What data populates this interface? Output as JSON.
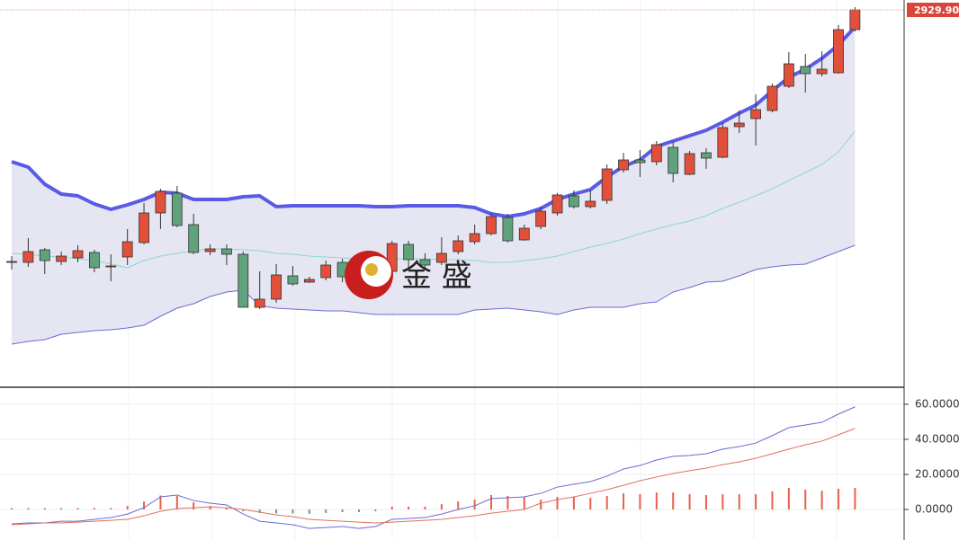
{
  "chart_data": [
    {
      "type": "candlestick",
      "watermark": "金 盛",
      "last_price": {
        "value": 2929.9,
        "label": "2929.90"
      },
      "ylim": [
        2510.9,
        2940.9
      ],
      "up_color": "#e0503a",
      "down_color": "#5fa27c",
      "open": [
        2648.9,
        2648.9,
        2662.9,
        2649.9,
        2653.9,
        2659.9,
        2643.9,
        2654.9,
        2670.9,
        2703.9,
        2725.9,
        2690.9,
        2660.9,
        2663.9,
        2657.9,
        2598.9,
        2607.9,
        2633.9,
        2626.9,
        2631.9,
        2648.9,
        2640.9,
        2645.9,
        2638.9,
        2668.9,
        2651.9,
        2648.9,
        2660.9,
        2671.9,
        2680.9,
        2698.9,
        2673.9,
        2688.9,
        2703.9,
        2722.9,
        2710.9,
        2717.9,
        2751.9,
        2762.9,
        2760.9,
        2776.9,
        2746.9,
        2770.9,
        2765.9,
        2799.9,
        2808.9,
        2817.9,
        2844.9,
        2866.9,
        2858.9,
        2859.9,
        2907.9
      ],
      "high": [
        2655.9,
        2675.9,
        2664.9,
        2660.9,
        2667.9,
        2662.9,
        2657.9,
        2685.9,
        2714.9,
        2730.9,
        2733.9,
        2702.9,
        2668.9,
        2668.9,
        2660.9,
        2638.9,
        2646.9,
        2644.9,
        2632.9,
        2650.9,
        2652.9,
        2654.9,
        2660.9,
        2672.9,
        2672.9,
        2658.9,
        2676.9,
        2678.9,
        2690.9,
        2703.9,
        2702.9,
        2690.9,
        2710.9,
        2725.9,
        2728.9,
        2728.9,
        2757.9,
        2770.9,
        2773.9,
        2783.9,
        2782.9,
        2772.9,
        2775.9,
        2803.9,
        2817.9,
        2835.9,
        2847.9,
        2882.9,
        2880.9,
        2883.9,
        2912.9,
        2932.9
      ],
      "low": [
        2640.9,
        2643.9,
        2635.9,
        2645.9,
        2648.9,
        2637.9,
        2627.9,
        2645.9,
        2668.9,
        2685.9,
        2687.9,
        2657.9,
        2656.9,
        2645.9,
        2598.9,
        2596.9,
        2603.9,
        2622.9,
        2625.9,
        2628.9,
        2626.9,
        2636.9,
        2642.9,
        2635.9,
        2640.9,
        2640.9,
        2645.9,
        2657.9,
        2668.9,
        2678.9,
        2670.9,
        2672.9,
        2685.9,
        2700.9,
        2708.9,
        2708.9,
        2713.9,
        2748.9,
        2743.9,
        2756.9,
        2737.9,
        2745.9,
        2752.9,
        2764.9,
        2792.9,
        2778.9,
        2815.9,
        2842.9,
        2837.9,
        2855.9,
        2858.9,
        2905.9
      ],
      "close": [
        2649.9,
        2660.9,
        2650.9,
        2655.9,
        2661.9,
        2642.9,
        2644.9,
        2671.9,
        2703.9,
        2727.9,
        2689.9,
        2659.9,
        2663.9,
        2657.9,
        2598.9,
        2607.9,
        2634.9,
        2624.9,
        2629.9,
        2645.9,
        2632.9,
        2650.9,
        2655.9,
        2669.9,
        2651.9,
        2645.9,
        2658.9,
        2672.9,
        2680.9,
        2699.9,
        2672.9,
        2686.9,
        2705.9,
        2723.9,
        2710.9,
        2716.9,
        2752.9,
        2762.9,
        2759.9,
        2779.9,
        2747.9,
        2769.9,
        2764.9,
        2798.9,
        2803.9,
        2818.9,
        2844.9,
        2869.9,
        2858.9,
        2863.9,
        2907.9,
        2929.9
      ],
      "bands": [
        {
          "color": "#5a5ae6",
          "width": 4,
          "values": [
            2760.9,
            2754.9,
            2735.9,
            2724.9,
            2722.9,
            2713.9,
            2707.9,
            2712.9,
            2718.9,
            2726.9,
            2725.9,
            2718.9,
            2718.9,
            2718.9,
            2721.9,
            2722.9,
            2710.9,
            2711.9,
            2711.9,
            2711.9,
            2711.9,
            2711.9,
            2710.9,
            2710.9,
            2711.9,
            2711.9,
            2711.9,
            2711.9,
            2709.9,
            2702.9,
            2699.9,
            2702.9,
            2708.9,
            2718.9,
            2724.9,
            2729.9,
            2743.9,
            2755.9,
            2762.9,
            2777.9,
            2783.9,
            2789.9,
            2795.9,
            2804.9,
            2814.9,
            2823.9,
            2839.9,
            2854.9,
            2863.9,
            2875.9,
            2890.9,
            2910.9
          ]
        },
        {
          "color": "#8fd6cc",
          "width": 1,
          "values": [
            2658.9,
            2657.9,
            2655.9,
            2654.9,
            2652.9,
            2650.9,
            2646.9,
            2642.9,
            2650.9,
            2655.9,
            2658.9,
            2661.9,
            2663.9,
            2663.9,
            2662.9,
            2661.9,
            2658.9,
            2657.9,
            2655.9,
            2654.9,
            2653.9,
            2652.9,
            2652.9,
            2652.9,
            2652.9,
            2652.9,
            2651.9,
            2651.9,
            2650.9,
            2648.9,
            2648.9,
            2650.9,
            2652.9,
            2655.9,
            2660.9,
            2665.9,
            2669.9,
            2674.9,
            2680.9,
            2685.9,
            2690.9,
            2694.9,
            2700.9,
            2708.9,
            2715.9,
            2722.9,
            2730.9,
            2739.9,
            2748.9,
            2757.9,
            2771.9,
            2794.9
          ]
        },
        {
          "color": "#6a6ad8",
          "width": 1,
          "values": [
            2557.9,
            2560.9,
            2562.9,
            2568.9,
            2570.9,
            2572.9,
            2573.9,
            2575.9,
            2578.9,
            2588.9,
            2597.9,
            2602.9,
            2610.9,
            2615.9,
            2617.9,
            2600.9,
            2597.9,
            2596.9,
            2595.9,
            2594.9,
            2594.9,
            2592.9,
            2590.9,
            2590.9,
            2590.9,
            2590.9,
            2590.9,
            2590.9,
            2595.9,
            2596.9,
            2597.9,
            2595.9,
            2593.9,
            2590.9,
            2595.9,
            2598.9,
            2598.9,
            2598.9,
            2602.9,
            2604.9,
            2615.9,
            2620.9,
            2626.9,
            2627.9,
            2633.9,
            2640.9,
            2643.9,
            2645.9,
            2646.9,
            2653.9,
            2660.9,
            2667.9
          ]
        }
      ],
      "band_fill": "#e6e6f3"
    },
    {
      "type": "macd",
      "ylim": [
        -16.9,
        69.2
      ],
      "yticks": [
        {
          "value": 60,
          "label": "60.0000"
        },
        {
          "value": 40,
          "label": "40.0000"
        },
        {
          "value": 20,
          "label": "20.0000"
        },
        {
          "value": 0,
          "label": "0.0000"
        }
      ],
      "grid": true,
      "series": [
        {
          "color": "#6a6ad0",
          "values": [
            -8.2,
            -7.7,
            -7.7,
            -6.7,
            -6.7,
            -5.6,
            -4.6,
            -2.6,
            1,
            7.2,
            8.2,
            5.1,
            3.6,
            2.6,
            -2.6,
            -6.7,
            -7.7,
            -8.7,
            -10.8,
            -10.3,
            -9.7,
            -10.8,
            -9.7,
            -5.6,
            -5.1,
            -4.6,
            -2.6,
            0,
            2.1,
            6.2,
            6.7,
            7.2,
            9.2,
            12.8,
            14.4,
            15.9,
            19,
            23.1,
            25.1,
            28.2,
            30.3,
            30.8,
            31.8,
            34.4,
            35.9,
            37.9,
            42.1,
            46.7,
            48.2,
            49.7,
            54.4,
            58.5
          ]
        },
        {
          "color": "#e07060",
          "values": [
            -8.7,
            -8.2,
            -7.7,
            -7.7,
            -7.2,
            -6.7,
            -6.2,
            -5.6,
            -3.6,
            -1,
            0.5,
            1,
            1.5,
            1,
            0,
            -1.5,
            -3.1,
            -4.1,
            -5.6,
            -6.2,
            -6.7,
            -7.2,
            -7.7,
            -7.2,
            -6.7,
            -6.2,
            -5.6,
            -4.6,
            -3.6,
            -2.1,
            -1,
            0,
            3.6,
            5.6,
            7.2,
            9.2,
            11.3,
            13.8,
            16.4,
            18.5,
            20.5,
            22.1,
            23.6,
            25.6,
            27.2,
            29.2,
            31.8,
            34.4,
            36.9,
            39,
            42.6,
            46.2
          ]
        }
      ],
      "histogram": {
        "up_color": "#e8604c",
        "down_color": "#5fa27c",
        "values": [
          0.8,
          0.8,
          0.8,
          0.8,
          0.8,
          0.8,
          0.8,
          2,
          4.5,
          8,
          7.7,
          4,
          2,
          1,
          -1,
          -2,
          -2.3,
          -2.3,
          -2.5,
          -2,
          -1.5,
          -1.5,
          -1,
          1.6,
          1.6,
          1.6,
          3,
          4.6,
          5.6,
          8.2,
          7.7,
          7.2,
          5.6,
          7.2,
          7.2,
          6.7,
          7.7,
          9.2,
          8.7,
          9.7,
          9.7,
          8.7,
          8.2,
          8.7,
          8.7,
          8.7,
          10.3,
          12.3,
          11.3,
          10.7,
          11.8,
          12.3
        ]
      }
    }
  ]
}
